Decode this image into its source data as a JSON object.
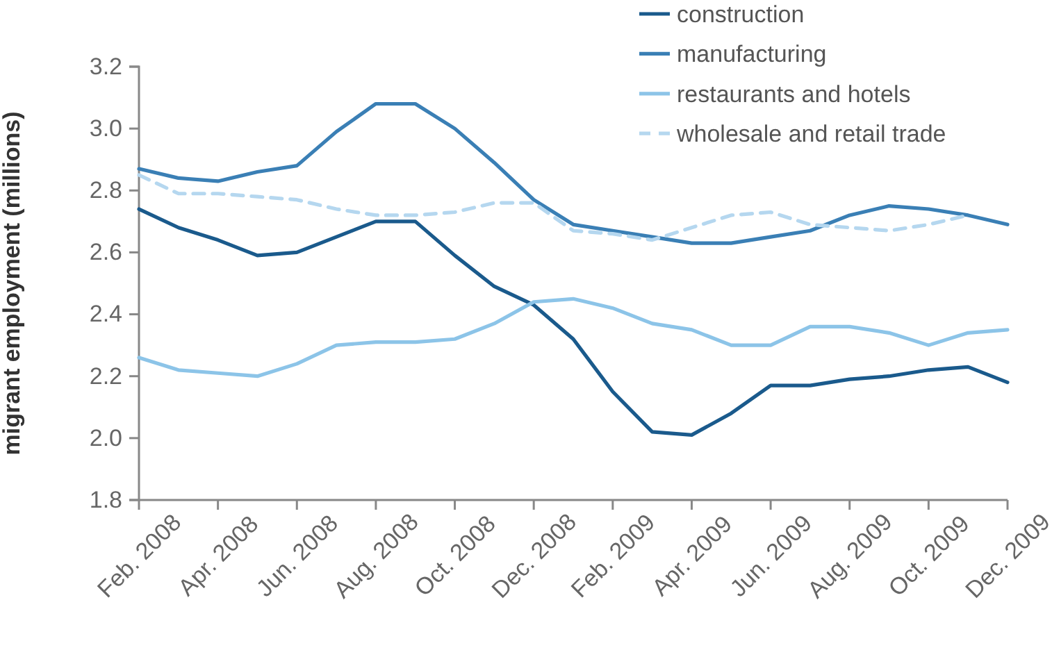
{
  "chart_data": {
    "type": "line",
    "ylabel": "migrant employment (millions)",
    "categories": [
      "Feb. 2008",
      null,
      "Apr. 2008",
      null,
      "Jun. 2008",
      null,
      "Aug. 2008",
      null,
      "Oct. 2008",
      null,
      "Dec. 2008",
      null,
      "Feb. 2009",
      null,
      "Apr. 2009",
      null,
      "Jun. 2009",
      null,
      "Aug. 2009",
      null,
      "Oct. 2009",
      null,
      "Dec. 2009"
    ],
    "ylim": [
      1.8,
      3.2
    ],
    "yticks": [
      {
        "value": 1.8,
        "label": "1.8"
      },
      {
        "value": 2.0,
        "label": "2.0"
      },
      {
        "value": 2.2,
        "label": "2.2"
      },
      {
        "value": 2.4,
        "label": "2.4"
      },
      {
        "value": 2.6,
        "label": "2.6"
      },
      {
        "value": 2.8,
        "label": "2.8"
      },
      {
        "value": 3.0,
        "label": "3.0"
      },
      {
        "value": 3.2,
        "label": "3.2"
      }
    ],
    "grid": false,
    "legend": "top right",
    "marker": "none",
    "series": [
      {
        "name": "construction",
        "color": "#1a5a8c",
        "line_style": "solid",
        "values": [
          2.74,
          2.68,
          2.64,
          2.59,
          2.6,
          2.65,
          2.7,
          2.7,
          2.59,
          2.49,
          2.43,
          2.32,
          2.15,
          2.02,
          2.01,
          2.08,
          2.17,
          2.17,
          2.19,
          2.2,
          2.22,
          2.23,
          2.18
        ]
      },
      {
        "name": "manufacturing",
        "color": "#3a7fb5",
        "line_style": "solid",
        "values": [
          2.87,
          2.84,
          2.83,
          2.86,
          2.88,
          2.99,
          3.08,
          3.08,
          3.0,
          2.89,
          2.77,
          2.69,
          2.67,
          2.65,
          2.63,
          2.63,
          2.65,
          2.67,
          2.72,
          2.75,
          2.74,
          2.72,
          2.69
        ]
      },
      {
        "name": "restaurants and hotels",
        "color": "#8cc4e8",
        "line_style": "solid",
        "values": [
          2.26,
          2.22,
          2.21,
          2.2,
          2.24,
          2.3,
          2.31,
          2.31,
          2.32,
          2.37,
          2.44,
          2.45,
          2.42,
          2.37,
          2.35,
          2.3,
          2.3,
          2.36,
          2.36,
          2.34,
          2.3,
          2.34,
          2.35
        ]
      },
      {
        "name": "wholesale and retail trade",
        "color": "#b5d7ef",
        "line_style": "dashed",
        "values": [
          2.85,
          2.79,
          2.79,
          2.78,
          2.77,
          2.74,
          2.72,
          2.72,
          2.73,
          2.76,
          2.76,
          2.67,
          2.66,
          2.64,
          2.68,
          2.72,
          2.73,
          2.69,
          2.68,
          2.67,
          2.69,
          2.72,
          null
        ]
      }
    ]
  }
}
